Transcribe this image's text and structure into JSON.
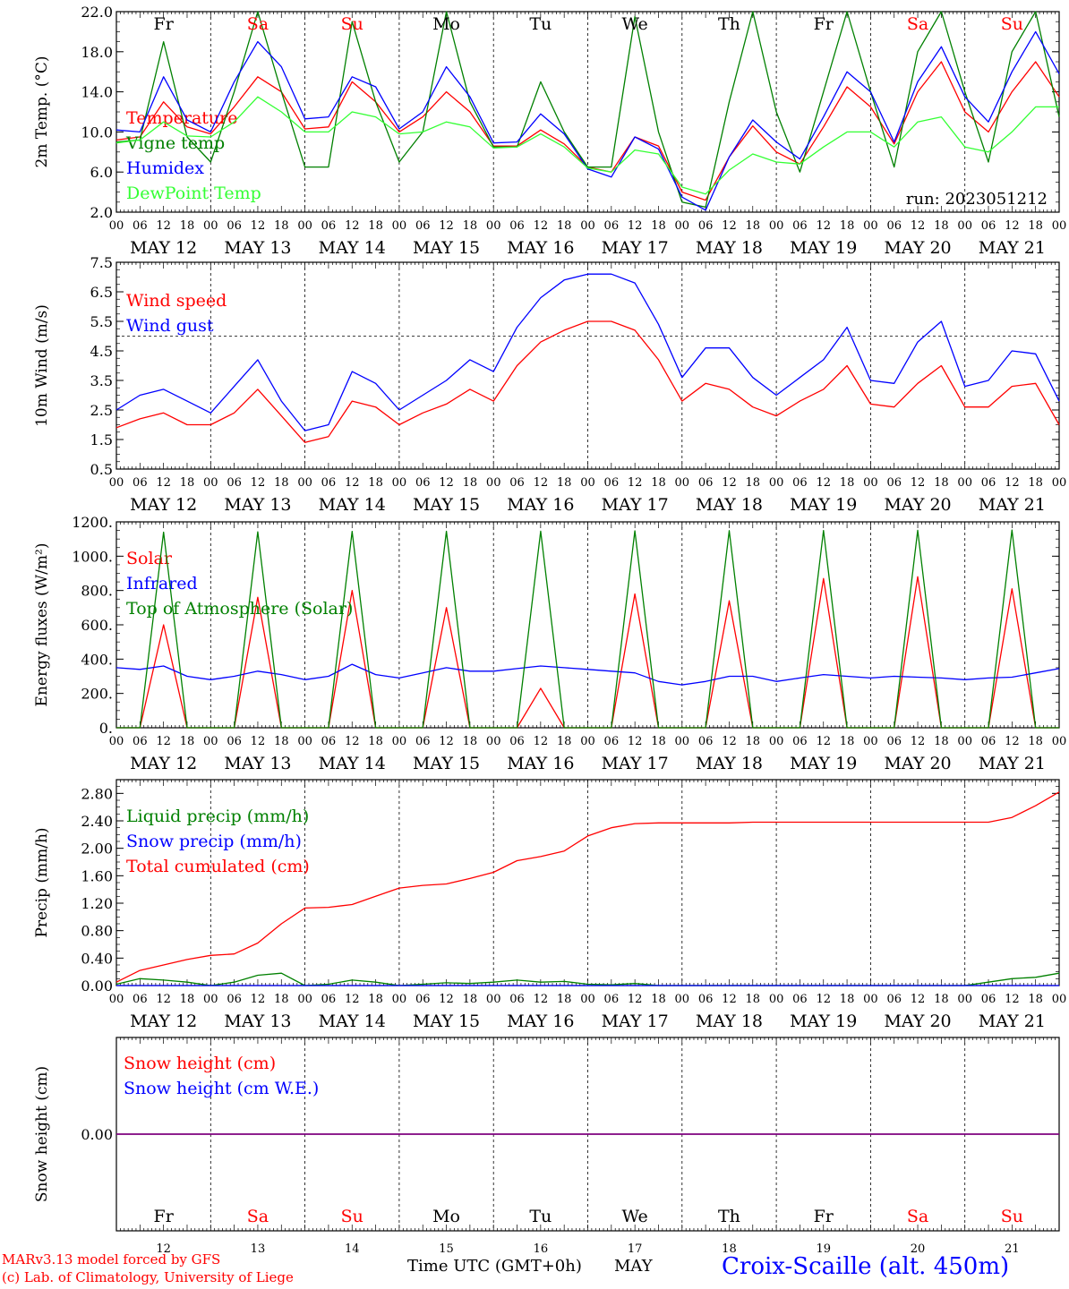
{
  "footer": {
    "model": "MARv3.13 model forced by GFS",
    "credit": "(c) Lab. of Climatology, University of Liege",
    "xlabel": "Time UTC (GMT+0h)",
    "month": "MAY",
    "station": "Croix-Scaille (alt. 450m)"
  },
  "colors": {
    "red": "#ff0000",
    "blue": "#0000ff",
    "darkgreen": "#008000",
    "lightgreen": "#33ff33",
    "purple": "#7f007f"
  },
  "x_hour_labels": [
    "00",
    "06",
    "12",
    "18"
  ],
  "x_end_label": "00",
  "date_labels": [
    "MAY 12",
    "MAY 13",
    "MAY 14",
    "MAY 15",
    "MAY 16",
    "MAY 17",
    "MAY 18",
    "MAY 19",
    "MAY 20",
    "MAY 21"
  ],
  "weekdays": [
    {
      "label": "Fr",
      "color": "black"
    },
    {
      "label": "Sa",
      "color": "red"
    },
    {
      "label": "Su",
      "color": "red"
    },
    {
      "label": "Mo",
      "color": "black"
    },
    {
      "label": "Tu",
      "color": "black"
    },
    {
      "label": "We",
      "color": "black"
    },
    {
      "label": "Th",
      "color": "black"
    },
    {
      "label": "Fr",
      "color": "black"
    },
    {
      "label": "Sa",
      "color": "red"
    },
    {
      "label": "Su",
      "color": "red"
    }
  ],
  "day_numbers": [
    "12",
    "13",
    "14",
    "15",
    "16",
    "17",
    "18",
    "19",
    "20",
    "21"
  ],
  "chart_data": [
    {
      "type": "line",
      "ylabel": "2m Temp. (°C)",
      "ylim": [
        2,
        22
      ],
      "yticks": [
        "2.0",
        "6.0",
        "10.0",
        "14.0",
        "18.0",
        "22.0"
      ],
      "annotation": "run: 2023051212",
      "x_hours": [
        0,
        6,
        12,
        18,
        24,
        30,
        36,
        42,
        48,
        54,
        60,
        66,
        72,
        78,
        84,
        90,
        96,
        102,
        108,
        114,
        120,
        126,
        132,
        138,
        144,
        150,
        156,
        162,
        168,
        174,
        180,
        186,
        192,
        198,
        204,
        210,
        216,
        222,
        228,
        234,
        240
      ],
      "series": [
        {
          "name": "Temperature",
          "color": "red",
          "values": [
            9.2,
            9.5,
            13,
            10.5,
            9.8,
            12.5,
            15.5,
            14,
            10.3,
            10.5,
            15,
            13,
            10,
            11.5,
            14,
            12,
            8.6,
            8.6,
            10.2,
            8.8,
            6.5,
            6,
            9.5,
            8.6,
            4,
            3.2,
            7.5,
            10.6,
            8,
            6.8,
            10.5,
            14.5,
            12.5,
            8.8,
            14,
            17,
            12,
            10,
            14,
            17,
            13.5
          ]
        },
        {
          "name": "Vigne temp",
          "color": "darkgreen",
          "values": [
            9.0,
            9.2,
            19,
            9.5,
            7.0,
            14,
            22,
            14,
            6.5,
            6.5,
            21,
            13,
            7.0,
            10,
            22,
            13,
            8.5,
            8.5,
            15,
            10,
            6.5,
            6.5,
            21.5,
            10,
            3.0,
            2.5,
            13,
            22,
            12,
            6.0,
            14,
            22,
            14,
            6.5,
            18,
            22,
            14,
            7.0,
            18,
            22,
            11.5
          ]
        },
        {
          "name": "Humidex",
          "color": "blue",
          "values": [
            10.2,
            10,
            15.5,
            11.2,
            10,
            15,
            19,
            16.5,
            11.3,
            11.5,
            15.5,
            14.5,
            10.3,
            12,
            16.5,
            13.5,
            8.9,
            9,
            11.8,
            9.8,
            6.3,
            5.5,
            9.5,
            8.3,
            3.5,
            2.2,
            7.5,
            11.2,
            9,
            7.3,
            11.5,
            16,
            14,
            9,
            15,
            18.5,
            13.5,
            11,
            16,
            20,
            15.8
          ]
        },
        {
          "name": "DewPoint Temp",
          "color": "lightgreen",
          "values": [
            8.9,
            9.2,
            11,
            9.6,
            9.5,
            11,
            13.5,
            12,
            10,
            10,
            12,
            11.5,
            9.8,
            10,
            11,
            10.5,
            8.4,
            8.5,
            9.8,
            8.5,
            6.4,
            6,
            8.2,
            7.8,
            4.5,
            3.8,
            6.2,
            7.8,
            7,
            6.8,
            8.5,
            10,
            10,
            8.5,
            11,
            11.5,
            8.5,
            8,
            10,
            12.5,
            12.5
          ]
        }
      ]
    },
    {
      "type": "line",
      "ylabel": "10m Wind (m/s)",
      "ylim": [
        0.5,
        7.5
      ],
      "yticks": [
        "0.5",
        "1.5",
        "2.5",
        "3.5",
        "4.5",
        "5.5",
        "6.5",
        "7.5"
      ],
      "reference_line": 5.0,
      "x_hours": [
        0,
        6,
        12,
        18,
        24,
        30,
        36,
        42,
        48,
        54,
        60,
        66,
        72,
        78,
        84,
        90,
        96,
        102,
        108,
        114,
        120,
        126,
        132,
        138,
        144,
        150,
        156,
        162,
        168,
        174,
        180,
        186,
        192,
        198,
        204,
        210,
        216,
        222,
        228,
        234,
        240
      ],
      "series": [
        {
          "name": "Wind speed",
          "color": "red",
          "values": [
            1.9,
            2.2,
            2.4,
            2.0,
            2.0,
            2.4,
            3.2,
            2.3,
            1.4,
            1.6,
            2.8,
            2.6,
            2.0,
            2.4,
            2.7,
            3.2,
            2.8,
            4.0,
            4.8,
            5.2,
            5.5,
            5.5,
            5.2,
            4.2,
            2.8,
            3.4,
            3.2,
            2.6,
            2.3,
            2.8,
            3.2,
            4.0,
            2.7,
            2.6,
            3.4,
            4.0,
            2.6,
            2.6,
            3.3,
            3.4,
            2.0
          ]
        },
        {
          "name": "Wind gust",
          "color": "blue",
          "values": [
            2.5,
            3.0,
            3.2,
            2.8,
            2.4,
            3.3,
            4.2,
            2.8,
            1.8,
            2.0,
            3.8,
            3.4,
            2.5,
            3.0,
            3.5,
            4.2,
            3.8,
            5.3,
            6.3,
            6.9,
            7.1,
            7.1,
            6.8,
            5.4,
            3.6,
            4.6,
            4.6,
            3.6,
            3.0,
            3.6,
            4.2,
            5.3,
            3.5,
            3.4,
            4.8,
            5.5,
            3.3,
            3.5,
            4.5,
            4.4,
            2.8
          ]
        }
      ]
    },
    {
      "type": "line",
      "ylabel": "Energy fluxes (W/m²)",
      "ylim": [
        0,
        1200
      ],
      "yticks": [
        "0.",
        "200.",
        "400.",
        "600.",
        "800.",
        "1000.",
        "1200."
      ],
      "x_hours": [
        0,
        6,
        12,
        18,
        24,
        30,
        36,
        42,
        48,
        54,
        60,
        66,
        72,
        78,
        84,
        90,
        96,
        102,
        108,
        114,
        120,
        126,
        132,
        138,
        144,
        150,
        156,
        162,
        168,
        174,
        180,
        186,
        192,
        198,
        204,
        210,
        216,
        222,
        228,
        234,
        240
      ],
      "series": [
        {
          "name": "Solar",
          "color": "red",
          "values": [
            0,
            0,
            600,
            0,
            0,
            0,
            760,
            0,
            0,
            0,
            800,
            0,
            0,
            0,
            700,
            0,
            0,
            0,
            230,
            0,
            0,
            0,
            780,
            0,
            0,
            0,
            740,
            0,
            0,
            0,
            870,
            0,
            0,
            0,
            880,
            0,
            0,
            0,
            810,
            0,
            0
          ]
        },
        {
          "name": "Infrared",
          "color": "blue",
          "values": [
            350,
            340,
            360,
            300,
            280,
            300,
            330,
            310,
            280,
            300,
            370,
            310,
            290,
            320,
            350,
            330,
            330,
            345,
            360,
            350,
            340,
            330,
            320,
            270,
            250,
            270,
            300,
            300,
            270,
            290,
            310,
            300,
            290,
            300,
            295,
            290,
            280,
            290,
            295,
            320,
            345
          ]
        },
        {
          "name": "Top of Atmosphere (Solar)",
          "color": "darkgreen",
          "values": [
            0,
            0,
            1140,
            0,
            0,
            0,
            1142,
            0,
            0,
            0,
            1144,
            0,
            0,
            0,
            1145,
            0,
            0,
            0,
            1146,
            0,
            0,
            0,
            1148,
            0,
            0,
            0,
            1149,
            0,
            0,
            0,
            1150,
            0,
            0,
            0,
            1151,
            0,
            0,
            0,
            1152,
            0,
            0
          ]
        }
      ]
    },
    {
      "type": "line",
      "ylabel": "Precip (mm/h)",
      "ylim": [
        0,
        3.0
      ],
      "yticks": [
        "0.00",
        "0.40",
        "0.80",
        "1.20",
        "1.60",
        "2.00",
        "2.40",
        "2.80"
      ],
      "x_hours": [
        0,
        6,
        12,
        18,
        24,
        30,
        36,
        42,
        48,
        54,
        60,
        66,
        72,
        78,
        84,
        90,
        96,
        102,
        108,
        114,
        120,
        126,
        132,
        138,
        144,
        150,
        156,
        162,
        168,
        174,
        180,
        186,
        192,
        198,
        204,
        210,
        216,
        222,
        228,
        234,
        240
      ],
      "series": [
        {
          "name": "Liquid precip (mm/h)",
          "color": "darkgreen",
          "values": [
            0.02,
            0.1,
            0.08,
            0.05,
            0,
            0.05,
            0.15,
            0.18,
            0,
            0.02,
            0.08,
            0.05,
            0,
            0.02,
            0.04,
            0.03,
            0.05,
            0.08,
            0.05,
            0.06,
            0.02,
            0.01,
            0.03,
            0,
            0,
            0,
            0,
            0,
            0,
            0,
            0,
            0,
            0,
            0,
            0,
            0,
            0,
            0.05,
            0.1,
            0.12,
            0.18
          ]
        },
        {
          "name": "Snow precip (mm/h)",
          "color": "blue",
          "values": [
            0,
            0,
            0,
            0,
            0,
            0,
            0,
            0,
            0,
            0,
            0,
            0,
            0,
            0,
            0,
            0,
            0,
            0,
            0,
            0,
            0,
            0,
            0,
            0,
            0,
            0,
            0,
            0,
            0,
            0,
            0,
            0,
            0,
            0,
            0,
            0,
            0,
            0,
            0,
            0,
            0
          ]
        },
        {
          "name": "Total cumulated (cm)",
          "color": "red",
          "values": [
            0.05,
            0.22,
            0.3,
            0.38,
            0.44,
            0.46,
            0.62,
            0.9,
            1.13,
            1.14,
            1.18,
            1.3,
            1.42,
            1.46,
            1.48,
            1.56,
            1.65,
            1.82,
            1.88,
            1.96,
            2.18,
            2.3,
            2.36,
            2.37,
            2.37,
            2.37,
            2.37,
            2.38,
            2.38,
            2.38,
            2.38,
            2.38,
            2.38,
            2.38,
            2.38,
            2.38,
            2.38,
            2.38,
            2.45,
            2.62,
            2.82
          ]
        }
      ]
    },
    {
      "type": "line",
      "ylabel": "Snow height (cm)",
      "ylim": [
        -1,
        1
      ],
      "yticks": [
        "0.00"
      ],
      "x_hours": [
        0,
        240
      ],
      "series": [
        {
          "name": "Snow height (cm)",
          "color": "red",
          "values": [
            0,
            0
          ]
        },
        {
          "name": "Snow height (cm W.E.)",
          "color": "blue",
          "values": [
            0,
            0
          ]
        }
      ]
    }
  ]
}
